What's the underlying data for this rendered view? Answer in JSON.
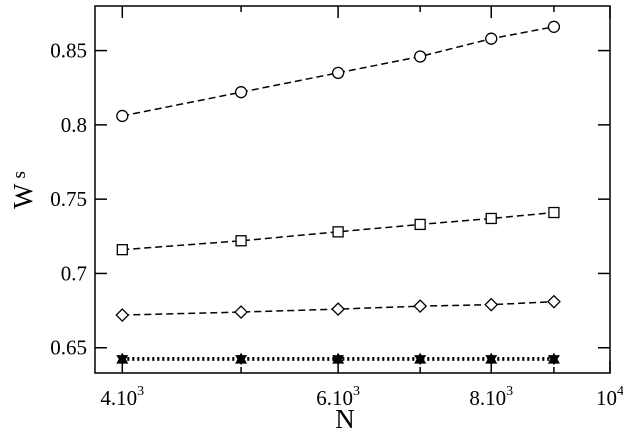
{
  "chart_data": {
    "type": "line",
    "xlabel": "N",
    "ylabel": "W",
    "ylabel_subscript": "s",
    "x_scale": "log",
    "xlim": [
      3800,
      10000
    ],
    "ylim": [
      0.633,
      0.88
    ],
    "grid": false,
    "x_ticks": [
      {
        "value": 4000,
        "base": "4.10",
        "exp": "3"
      },
      {
        "value": 6000,
        "base": "6.10",
        "exp": "3"
      },
      {
        "value": 8000,
        "base": "8.10",
        "exp": "3"
      },
      {
        "value": 10000,
        "base": "10",
        "exp": "4"
      }
    ],
    "y_ticks": [
      {
        "value": 0.65,
        "label": "0.65"
      },
      {
        "value": 0.7,
        "label": "0.7"
      },
      {
        "value": 0.75,
        "label": "0.75"
      },
      {
        "value": 0.8,
        "label": "0.8"
      },
      {
        "value": 0.85,
        "label": "0.85"
      }
    ],
    "x": [
      4000,
      5000,
      6000,
      7000,
      8000,
      9000
    ],
    "series": [
      {
        "marker": "circle",
        "line": "dashed",
        "values": [
          0.806,
          0.822,
          0.835,
          0.846,
          0.858,
          0.866
        ]
      },
      {
        "marker": "square",
        "line": "dashed",
        "values": [
          0.716,
          0.722,
          0.728,
          0.733,
          0.737,
          0.741
        ]
      },
      {
        "marker": "diamond",
        "line": "dashed",
        "values": [
          0.672,
          0.674,
          0.676,
          0.678,
          0.679,
          0.681
        ]
      },
      {
        "marker": "triangle-down",
        "line": "dotted",
        "values": [
          0.643,
          0.643,
          0.643,
          0.643,
          0.643,
          0.643
        ]
      },
      {
        "marker": "triangle-up",
        "line": "dotted",
        "values": [
          0.642,
          0.642,
          0.642,
          0.642,
          0.642,
          0.642
        ]
      }
    ],
    "colors": {
      "ink": "#000000",
      "background": "#ffffff"
    }
  }
}
